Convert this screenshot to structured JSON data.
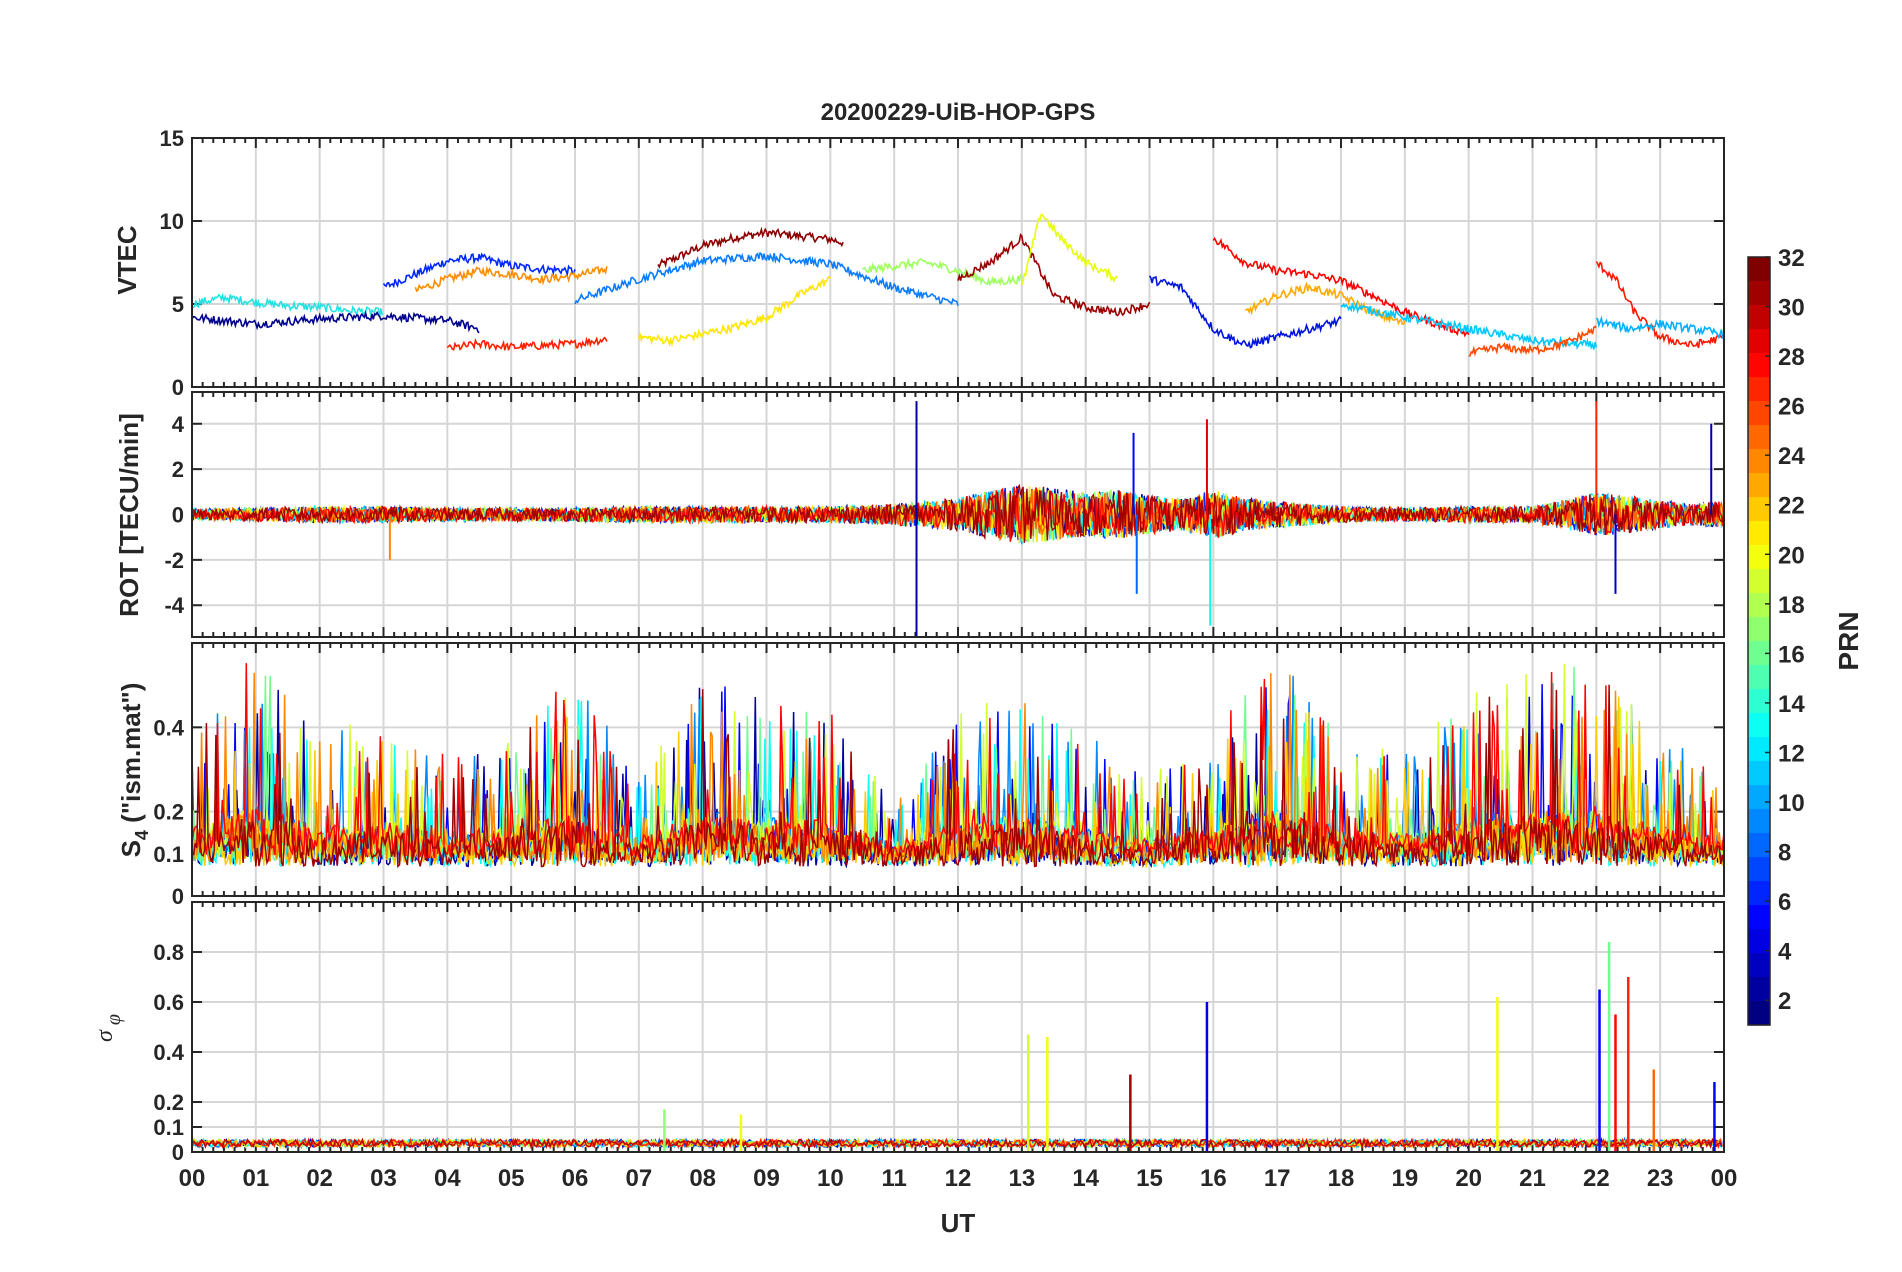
{
  "chart_data": {
    "type": "line",
    "title": "20200229-UiB-HOP-GPS",
    "xlabel": "UT",
    "x_tick_labels": [
      "00",
      "01",
      "02",
      "03",
      "04",
      "05",
      "06",
      "07",
      "08",
      "09",
      "10",
      "11",
      "12",
      "13",
      "14",
      "15",
      "16",
      "17",
      "18",
      "19",
      "20",
      "21",
      "22",
      "23",
      "00"
    ],
    "xlim": [
      0,
      24
    ],
    "panels": [
      {
        "name": "vtec",
        "ylabel": "VTEC",
        "ylim": [
          0,
          15
        ],
        "y_ticks": [
          0,
          5,
          10,
          15
        ],
        "y_tick_labels": [
          "0",
          "5",
          "10",
          "15"
        ],
        "series": [
          {
            "prn": 30,
            "color": "#8b0000",
            "x": [
              7.3,
              8.0,
              8.5,
              9.0,
              9.5,
              10.0,
              10.2
            ],
            "y": [
              7.3,
              8.5,
              9.0,
              9.3,
              9.1,
              8.9,
              8.7
            ]
          },
          {
            "prn": 5,
            "color": "#0028ff",
            "x": [
              3.0,
              3.5,
              4.0,
              4.5,
              5.0,
              5.5,
              6.0
            ],
            "y": [
              6.0,
              6.8,
              7.6,
              7.8,
              7.3,
              7.1,
              7.0
            ]
          },
          {
            "prn": 24,
            "color": "#ff8c00",
            "x": [
              3.5,
              4.0,
              4.5,
              5.0,
              5.5,
              6.0,
              6.5
            ],
            "y": [
              5.8,
              6.5,
              7.0,
              6.8,
              6.5,
              6.7,
              7.1
            ]
          },
          {
            "prn": 14,
            "color": "#25e2e2",
            "x": [
              0.0,
              0.5,
              1.0,
              1.5,
              2.0,
              2.5,
              3.0
            ],
            "y": [
              5.0,
              5.4,
              5.1,
              4.9,
              4.8,
              4.6,
              4.5
            ]
          },
          {
            "prn": 27,
            "color": "#ff2000",
            "x": [
              4.0,
              4.5,
              5.0,
              5.5,
              6.0,
              6.5
            ],
            "y": [
              2.3,
              2.6,
              2.4,
              2.5,
              2.6,
              2.9
            ]
          },
          {
            "prn": 2,
            "color": "#00008f",
            "x": [
              0.0,
              1.0,
              2.0,
              3.0,
              4.0,
              4.5
            ],
            "y": [
              4.2,
              3.8,
              4.1,
              4.3,
              4.0,
              3.5
            ]
          },
          {
            "prn": 20,
            "color": "#ffe600",
            "x": [
              7.0,
              7.5,
              8.0,
              8.5,
              9.0,
              9.5,
              10.0
            ],
            "y": [
              3.0,
              2.8,
              3.2,
              3.6,
              4.2,
              5.5,
              6.5
            ]
          },
          {
            "prn": 9,
            "color": "#0a7cff",
            "x": [
              6.0,
              7.0,
              8.0,
              9.0,
              10.0,
              11.0,
              12.0
            ],
            "y": [
              5.2,
              6.5,
              7.6,
              7.9,
              7.4,
              6.0,
              5.0
            ]
          },
          {
            "prn": 17,
            "color": "#a0ff5f",
            "x": [
              10.5,
              11.0,
              11.5,
              12.0,
              12.5,
              13.0
            ],
            "y": [
              7.0,
              7.3,
              7.5,
              7.0,
              6.3,
              6.5
            ]
          },
          {
            "prn": 31,
            "color": "#9b0000",
            "x": [
              12.0,
              12.5,
              13.0,
              13.5,
              14.0,
              14.5,
              15.0
            ],
            "y": [
              6.5,
              7.5,
              9.0,
              5.5,
              4.8,
              4.5,
              5.0
            ]
          },
          {
            "prn": 19,
            "color": "#e6ff10",
            "x": [
              13.0,
              13.3,
              13.6,
              14.0,
              14.5
            ],
            "y": [
              6.0,
              10.5,
              9.0,
              7.5,
              6.5
            ]
          },
          {
            "prn": 29,
            "color": "#ff0000",
            "x": [
              16.0,
              16.5,
              17.0,
              17.5,
              18.0,
              18.5,
              19.0,
              19.5,
              20.0
            ],
            "y": [
              9.0,
              7.5,
              7.0,
              6.8,
              6.4,
              5.5,
              4.5,
              3.8,
              3.2
            ]
          },
          {
            "prn": 4,
            "color": "#0014e0",
            "x": [
              15.0,
              15.5,
              16.0,
              16.5,
              17.0,
              17.5,
              18.0
            ],
            "y": [
              6.5,
              6.0,
              3.5,
              2.5,
              3.0,
              3.5,
              4.0
            ]
          },
          {
            "prn": 23,
            "color": "#ffaa00",
            "x": [
              16.5,
              17.0,
              17.5,
              18.0,
              18.5,
              19.0
            ],
            "y": [
              4.5,
              5.5,
              6.0,
              5.5,
              4.5,
              3.8
            ]
          },
          {
            "prn": 12,
            "color": "#00c8ff",
            "x": [
              18.0,
              19.0,
              20.0,
              21.0,
              22.0
            ],
            "y": [
              5.0,
              4.2,
              3.5,
              2.8,
              2.5
            ]
          },
          {
            "prn": 26,
            "color": "#ff4a00",
            "x": [
              20.0,
              20.5,
              21.0,
              21.5,
              22.0
            ],
            "y": [
              2.0,
              2.4,
              2.2,
              2.6,
              3.5
            ]
          },
          {
            "prn": 28,
            "color": "#ff1800",
            "x": [
              22.0,
              22.3,
              22.6,
              23.0,
              23.5,
              24.0
            ],
            "y": [
              7.5,
              6.5,
              4.5,
              3.0,
              2.5,
              3.0
            ]
          },
          {
            "prn": 11,
            "color": "#00b0ff",
            "x": [
              22.0,
              22.5,
              23.0,
              23.5,
              24.0
            ],
            "y": [
              4.0,
              3.5,
              3.8,
              3.5,
              3.2
            ]
          }
        ]
      },
      {
        "name": "rot",
        "ylabel": "ROT [TECU/min]",
        "ylim": [
          -5.4,
          5.4
        ],
        "y_ticks": [
          -4,
          -2,
          0,
          2,
          4
        ],
        "y_tick_labels": [
          "-4",
          "-2",
          "0",
          "2",
          "4"
        ],
        "activity_envelope": {
          "hour": [
            0,
            1,
            2,
            3,
            4,
            5,
            6,
            7,
            8,
            9,
            10,
            11,
            12,
            12.5,
            13,
            13.5,
            14,
            14.5,
            15,
            15.5,
            16,
            16.5,
            17,
            18,
            19,
            20,
            21,
            22,
            22.5,
            23,
            23.5,
            24
          ],
          "amplitude": [
            0.4,
            0.5,
            0.6,
            0.6,
            0.5,
            0.5,
            0.5,
            0.6,
            0.6,
            0.6,
            0.6,
            0.8,
            1.2,
            1.8,
            2.2,
            2.0,
            1.6,
            1.8,
            1.4,
            1.2,
            1.8,
            1.2,
            1.0,
            0.6,
            0.5,
            0.6,
            0.6,
            1.6,
            1.4,
            1.0,
            0.8,
            1.0
          ]
        },
        "spikes": [
          {
            "x": 11.35,
            "y": 5.0,
            "prn": 2
          },
          {
            "x": 11.35,
            "y": -5.4,
            "prn": 2
          },
          {
            "x": 15.9,
            "y": 4.2,
            "prn": 29
          },
          {
            "x": 15.95,
            "y": -4.9,
            "prn": 13
          },
          {
            "x": 22.0,
            "y": 5.0,
            "prn": 27
          },
          {
            "x": 22.3,
            "y": -3.5,
            "prn": 3
          },
          {
            "x": 23.8,
            "y": 4.0,
            "prn": 2
          },
          {
            "x": 3.1,
            "y": -2.0,
            "prn": 24
          },
          {
            "x": 14.75,
            "y": 3.6,
            "prn": 5
          },
          {
            "x": 14.8,
            "y": -3.5,
            "prn": 8
          }
        ]
      },
      {
        "name": "s4",
        "ylabel": "S4 (\"ism.mat\")",
        "ylim": [
          0,
          0.6
        ],
        "y_ticks": [
          0,
          0.1,
          0.2,
          0.4
        ],
        "y_tick_labels": [
          "0",
          "0.1",
          "0.2",
          "0.4"
        ],
        "baseline": 0.07,
        "activity_envelope": {
          "hour": [
            0,
            0.5,
            1,
            2,
            3,
            4,
            5,
            6,
            7,
            8,
            9,
            10,
            11,
            12,
            13,
            14,
            15,
            16,
            17,
            18,
            19,
            20,
            21,
            22,
            23,
            24
          ],
          "amplitude": [
            0.3,
            0.4,
            0.5,
            0.3,
            0.35,
            0.25,
            0.3,
            0.45,
            0.2,
            0.45,
            0.4,
            0.35,
            0.15,
            0.35,
            0.4,
            0.3,
            0.2,
            0.3,
            0.5,
            0.3,
            0.25,
            0.4,
            0.45,
            0.5,
            0.3,
            0.2
          ]
        }
      },
      {
        "name": "sigma_phi",
        "ylabel": "σφ",
        "ylim": [
          0,
          1.0
        ],
        "y_ticks": [
          0,
          0.1,
          0.2,
          0.4,
          0.6,
          0.8
        ],
        "y_tick_labels": [
          "0",
          "0.1",
          "0.2",
          "0.4",
          "0.6",
          "0.8"
        ],
        "baseline": 0.02,
        "spikes": [
          {
            "x": 7.4,
            "y": 0.17,
            "prn": 17
          },
          {
            "x": 8.6,
            "y": 0.15,
            "prn": 20
          },
          {
            "x": 13.1,
            "y": 0.47,
            "prn": 19
          },
          {
            "x": 13.4,
            "y": 0.46,
            "prn": 20
          },
          {
            "x": 14.7,
            "y": 0.31,
            "prn": 31
          },
          {
            "x": 15.9,
            "y": 0.6,
            "prn": 4
          },
          {
            "x": 20.45,
            "y": 0.62,
            "prn": 20
          },
          {
            "x": 22.05,
            "y": 0.65,
            "prn": 5
          },
          {
            "x": 22.2,
            "y": 0.84,
            "prn": 16
          },
          {
            "x": 22.3,
            "y": 0.55,
            "prn": 28
          },
          {
            "x": 22.5,
            "y": 0.7,
            "prn": 27
          },
          {
            "x": 22.9,
            "y": 0.33,
            "prn": 25
          },
          {
            "x": 23.85,
            "y": 0.28,
            "prn": 5
          }
        ]
      }
    ],
    "colorbar": {
      "label": "PRN",
      "range": [
        1,
        32
      ],
      "tick_labels": [
        "2",
        "4",
        "6",
        "8",
        "10",
        "12",
        "14",
        "16",
        "18",
        "20",
        "22",
        "24",
        "26",
        "28",
        "30",
        "32"
      ],
      "colormap": "jet"
    },
    "grid": true
  }
}
